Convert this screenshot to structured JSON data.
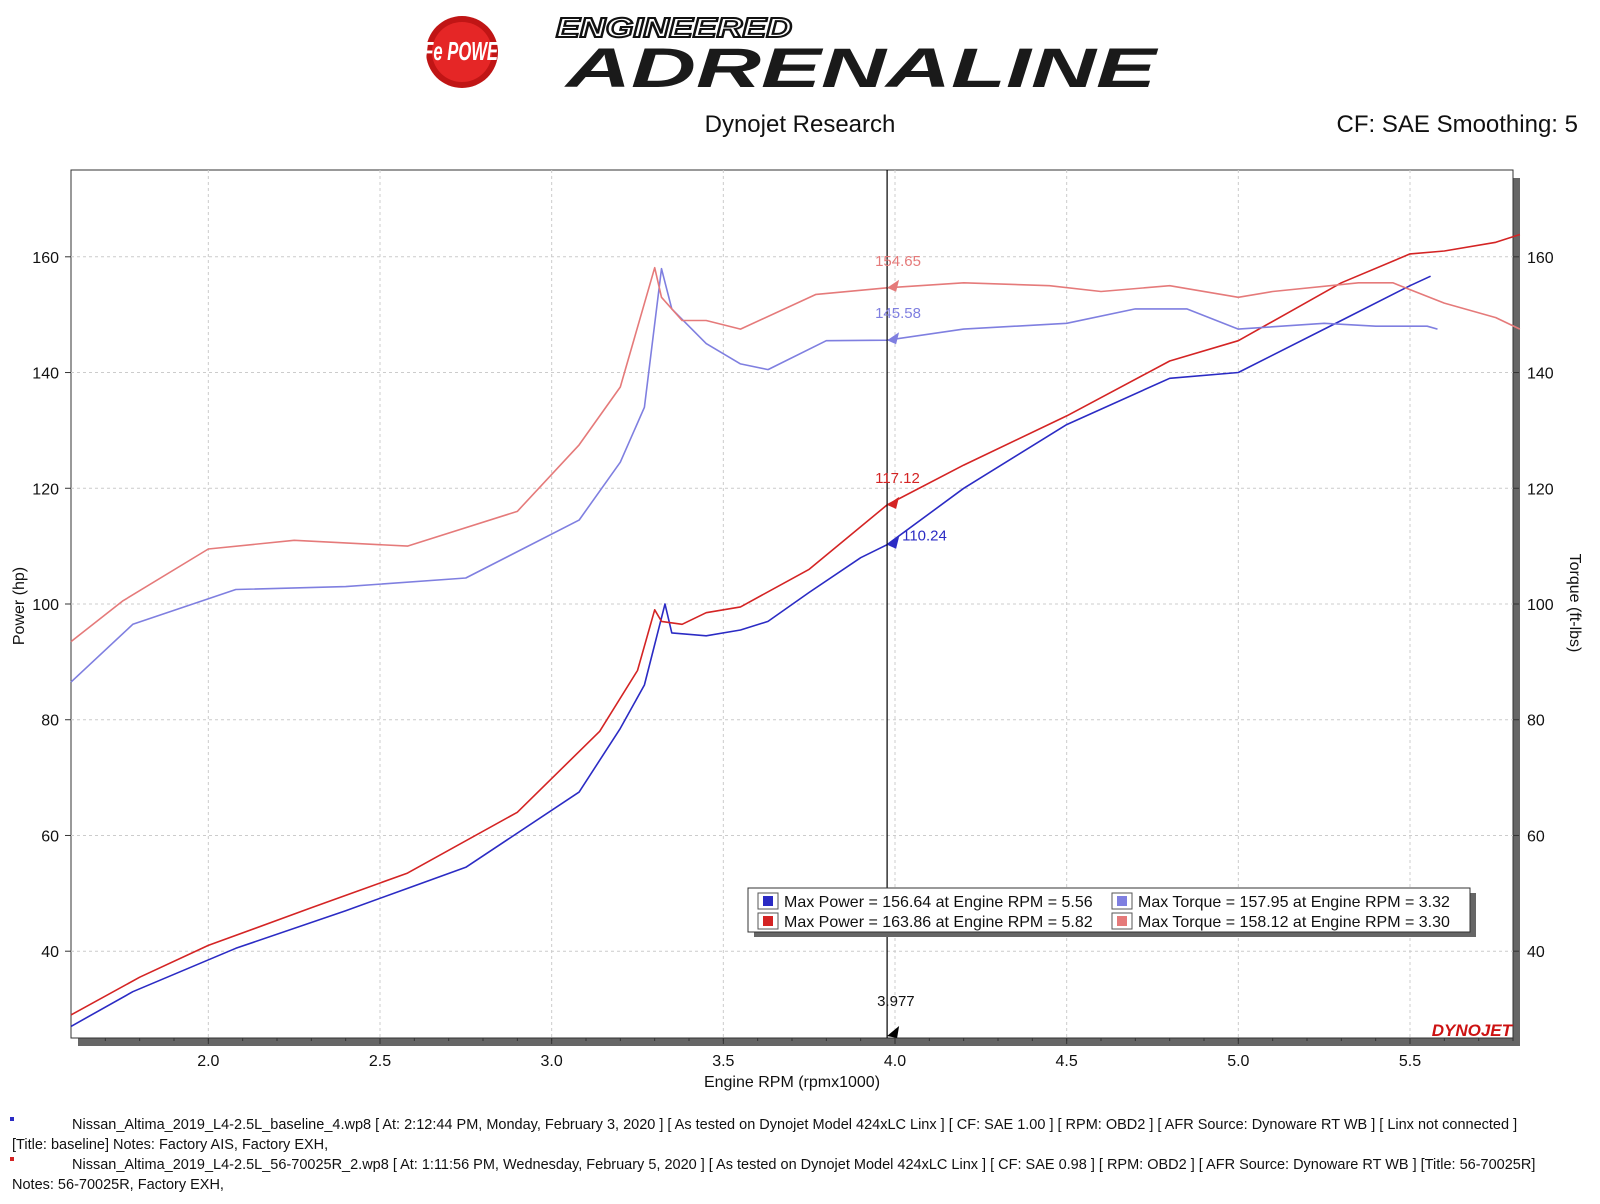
{
  "header": {
    "brand_logo_text": "aFe POWER",
    "slogan_top": "ENGINEERED",
    "slogan_main": "ADRENALINE",
    "subtitle": "Dynojet Research",
    "settings": "CF: SAE Smoothing: 5"
  },
  "colors": {
    "baseline_power": "#2b2bc4",
    "baseline_torque": "#7f7fe0",
    "mod_power": "#d42424",
    "mod_torque": "#e57a7a",
    "cursor": "#000000",
    "grid": "#cccccc"
  },
  "chart_data": {
    "type": "line",
    "xlabel": "Engine RPM (rpmx1000)",
    "ylabel_left": "Power (hp)",
    "ylabel_right": "Torque (ft-lbs)",
    "xlim": [
      1.6,
      5.8
    ],
    "ylim": [
      25,
      175
    ],
    "x_ticks": [
      "2.0",
      "2.5",
      "3.0",
      "3.5",
      "4.0",
      "4.5",
      "5.0",
      "5.5"
    ],
    "y_ticks": [
      "40",
      "60",
      "80",
      "100",
      "120",
      "140",
      "160"
    ],
    "grid": true,
    "legend_position": "bottom-right",
    "series": [
      {
        "name": "Max Power = 156.64 at Engine RPM = 5.56",
        "color_key": "baseline_power",
        "x": [
          1.6,
          1.78,
          2.08,
          2.4,
          2.75,
          3.08,
          3.2,
          3.27,
          3.3,
          3.33,
          3.35,
          3.45,
          3.55,
          3.63,
          3.75,
          3.9,
          3.977,
          4.2,
          4.5,
          4.8,
          5.0,
          5.3,
          5.5,
          5.56
        ],
        "values": [
          27,
          33,
          40.5,
          47,
          54.5,
          67.5,
          78.5,
          86,
          93,
          100,
          95,
          94.5,
          95.5,
          97,
          102,
          108,
          110.24,
          120,
          131,
          139,
          140,
          149,
          155,
          156.64
        ]
      },
      {
        "name": "Max Power = 163.86 at Engine RPM = 5.82",
        "color_key": "mod_power",
        "x": [
          1.6,
          1.8,
          2.0,
          2.3,
          2.58,
          2.9,
          3.14,
          3.25,
          3.3,
          3.32,
          3.38,
          3.45,
          3.55,
          3.75,
          3.977,
          4.2,
          4.5,
          4.8,
          5.0,
          5.15,
          5.3,
          5.5,
          5.6,
          5.75,
          5.82
        ],
        "values": [
          29,
          35.5,
          41,
          47.5,
          53.5,
          64,
          78,
          88.5,
          99,
          97,
          96.5,
          98.5,
          99.5,
          106,
          117.12,
          124,
          132.5,
          142,
          145.5,
          150.5,
          155.5,
          160.5,
          161,
          162.5,
          163.86
        ]
      },
      {
        "name": "Max Torque = 157.95 at Engine RPM = 3.32",
        "color_key": "baseline_torque",
        "x": [
          1.6,
          1.78,
          2.08,
          2.4,
          2.75,
          3.08,
          3.2,
          3.27,
          3.32,
          3.35,
          3.45,
          3.55,
          3.63,
          3.8,
          3.977,
          4.2,
          4.5,
          4.7,
          4.85,
          5.0,
          5.25,
          5.4,
          5.55,
          5.58
        ],
        "values": [
          86.5,
          96.5,
          102.5,
          103,
          104.5,
          114.5,
          124.5,
          134,
          157.95,
          151,
          145,
          141.5,
          140.5,
          145.5,
          145.58,
          147.5,
          148.5,
          151,
          151,
          147.5,
          148.5,
          148,
          148,
          147.5
        ]
      },
      {
        "name": "Max Torque = 158.12 at Engine RPM = 3.30",
        "color_key": "mod_torque",
        "x": [
          1.6,
          1.75,
          2.0,
          2.25,
          2.58,
          2.9,
          3.08,
          3.2,
          3.3,
          3.32,
          3.38,
          3.45,
          3.55,
          3.77,
          3.977,
          4.2,
          4.45,
          4.6,
          4.8,
          5.0,
          5.1,
          5.35,
          5.45,
          5.6,
          5.75,
          5.82
        ],
        "values": [
          93.5,
          100.5,
          109.5,
          111,
          110,
          116,
          127.5,
          137.5,
          158.12,
          153,
          149,
          149,
          147.5,
          153.5,
          154.65,
          155.5,
          155,
          154,
          155,
          153,
          154,
          155.5,
          155.5,
          152,
          149.5,
          147.5
        ]
      }
    ],
    "cursor": {
      "x": 3.977,
      "label": "3.977"
    },
    "annotations": [
      {
        "label": "154.65",
        "x": 3.977,
        "y": 154.65,
        "color_key": "mod_torque"
      },
      {
        "label": "145.58",
        "x": 3.977,
        "y": 145.58,
        "color_key": "baseline_torque"
      },
      {
        "label": "117.12",
        "x": 3.977,
        "y": 117.12,
        "color_key": "mod_power"
      },
      {
        "label": "110.24",
        "x": 3.977,
        "y": 110.24,
        "color_key": "baseline_power"
      }
    ],
    "legend": [
      {
        "text": "Max Power = 156.64 at Engine RPM = 5.56",
        "color_key": "baseline_power"
      },
      {
        "text": "Max Torque = 157.95 at Engine RPM = 3.32",
        "color_key": "baseline_torque"
      },
      {
        "text": "Max Power = 163.86 at Engine RPM = 5.82",
        "color_key": "mod_power"
      },
      {
        "text": "Max Torque = 158.12 at Engine RPM = 3.30",
        "color_key": "mod_torque"
      }
    ],
    "watermark": "DYNOJET"
  },
  "notes": {
    "run1_line1": "Nissan_Altima_2019_L4-2.5L_baseline_4.wp8 [ At: 2:12:44 PM, Monday, February 3, 2020 ] [ As tested on Dynojet Model 424xLC Linx ] [ CF: SAE 1.00 ] [ RPM: OBD2 ] [ AFR Source: Dynoware RT WB ] [ Linx not connected ]",
    "run1_line2": "[Title: baseline]  Notes: Factory AIS, Factory EXH,",
    "run2_line1": "Nissan_Altima_2019_L4-2.5L_56-70025R_2.wp8 [ At: 1:11:56 PM, Wednesday, February 5, 2020 ] [ As tested on Dynojet Model 424xLC Linx ] [ CF: SAE 0.98 ] [ RPM: OBD2 ] [ AFR Source: Dynoware RT WB ] [Title: 56-70025R]",
    "run2_line2": "Notes: 56-70025R, Factory EXH,"
  }
}
